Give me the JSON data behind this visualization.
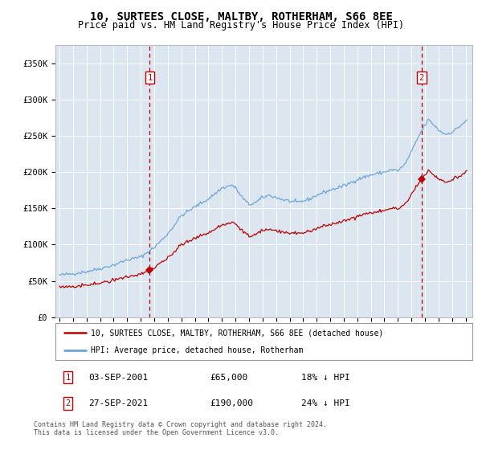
{
  "title": "10, SURTEES CLOSE, MALTBY, ROTHERHAM, S66 8EE",
  "subtitle": "Price paid vs. HM Land Registry's House Price Index (HPI)",
  "legend_line1": "10, SURTEES CLOSE, MALTBY, ROTHERHAM, S66 8EE (detached house)",
  "legend_line2": "HPI: Average price, detached house, Rotherham",
  "annotation1_date": "03-SEP-2001",
  "annotation1_price": "£65,000",
  "annotation1_hpi": "18% ↓ HPI",
  "annotation2_date": "27-SEP-2021",
  "annotation2_price": "£190,000",
  "annotation2_hpi": "24% ↓ HPI",
  "footer": "Contains HM Land Registry data © Crown copyright and database right 2024.\nThis data is licensed under the Open Government Licence v3.0.",
  "hpi_color": "#5b9bd5",
  "price_color": "#c00000",
  "annotation_color": "#c00000",
  "plot_bg": "#dce6f0",
  "grid_color": "#ffffff",
  "ylim": [
    0,
    375000
  ],
  "yticks": [
    0,
    50000,
    100000,
    150000,
    200000,
    250000,
    300000,
    350000
  ],
  "ytick_labels": [
    "£0",
    "£50K",
    "£100K",
    "£150K",
    "£200K",
    "£250K",
    "£300K",
    "£350K"
  ],
  "sale1_x": 2001.67,
  "sale1_y": 65000,
  "sale2_x": 2021.75,
  "sale2_y": 190000,
  "xmin": 1995.0,
  "xmax": 2025.5
}
